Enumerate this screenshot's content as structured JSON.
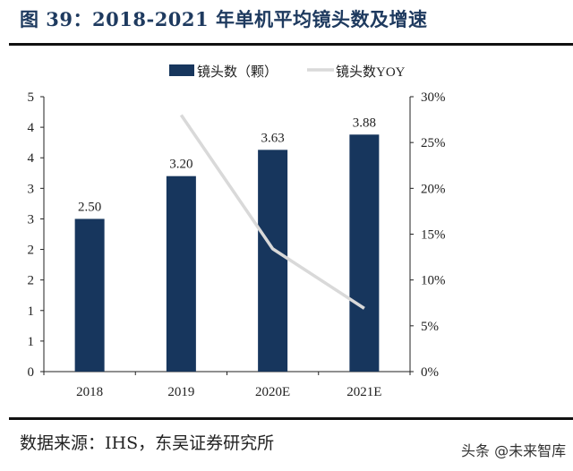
{
  "title": "图 39：2018-2021 年单机平均镜头数及增速",
  "source": "数据来源：IHS，东吴证券研究所",
  "watermark": "头条 @未来智库",
  "chart_data": {
    "type": "bar",
    "categories": [
      "2018",
      "2019",
      "2020E",
      "2021E"
    ],
    "series": [
      {
        "name": "镜头数（颗）",
        "type": "bar",
        "axis": "left",
        "values": [
          2.5,
          3.2,
          3.63,
          3.88
        ],
        "labels": [
          "2.50",
          "3.20",
          "3.63",
          "3.88"
        ],
        "color": "#17365d"
      },
      {
        "name": "镜头数YOY",
        "type": "line",
        "axis": "right",
        "values": [
          null,
          28.0,
          13.4,
          6.9
        ],
        "color": "#d9d9d9"
      }
    ],
    "left_axis": {
      "ylim": [
        0,
        4.5
      ],
      "ticks": [
        0,
        0.5,
        1,
        1.5,
        2,
        2.5,
        3,
        3.5,
        4,
        4.5
      ],
      "tick_labels": [
        "0",
        "1",
        "1",
        "2",
        "2",
        "3",
        "3",
        "4",
        "4",
        "5"
      ]
    },
    "right_axis": {
      "ylim": [
        0,
        30
      ],
      "ticks": [
        0,
        5,
        10,
        15,
        20,
        25,
        30
      ],
      "tick_labels": [
        "0%",
        "5%",
        "10%",
        "15%",
        "20%",
        "25%",
        "30%"
      ]
    },
    "legend": "top-center",
    "grid": false
  }
}
